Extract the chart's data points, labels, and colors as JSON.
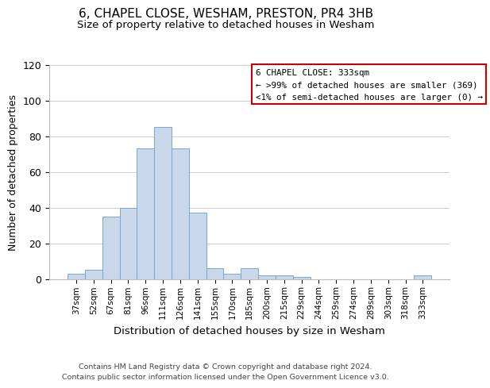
{
  "title": "6, CHAPEL CLOSE, WESHAM, PRESTON, PR4 3HB",
  "subtitle": "Size of property relative to detached houses in Wesham",
  "xlabel": "Distribution of detached houses by size in Wesham",
  "ylabel": "Number of detached properties",
  "bar_labels": [
    "37sqm",
    "52sqm",
    "67sqm",
    "81sqm",
    "96sqm",
    "111sqm",
    "126sqm",
    "141sqm",
    "155sqm",
    "170sqm",
    "185sqm",
    "200sqm",
    "215sqm",
    "229sqm",
    "244sqm",
    "259sqm",
    "274sqm",
    "289sqm",
    "303sqm",
    "318sqm",
    "333sqm"
  ],
  "bar_values": [
    3,
    5,
    35,
    40,
    73,
    85,
    73,
    37,
    6,
    3,
    6,
    2,
    2,
    1,
    0,
    0,
    0,
    0,
    0,
    0,
    2
  ],
  "bar_color": "#c8d8ea",
  "bar_edge_color": "#7aa8c8",
  "ylim": [
    0,
    120
  ],
  "yticks": [
    0,
    20,
    40,
    60,
    80,
    100,
    120
  ],
  "legend_title": "6 CHAPEL CLOSE: 333sqm",
  "legend_line1": "← >99% of detached houses are smaller (369)",
  "legend_line2": "<1% of semi-detached houses are larger (0) →",
  "legend_box_color": "#ffffff",
  "legend_box_edge": "#cc0000",
  "footer_line1": "Contains HM Land Registry data © Crown copyright and database right 2024.",
  "footer_line2": "Contains public sector information licensed under the Open Government Licence v3.0.",
  "background_color": "#ffffff",
  "grid_color": "#cccccc"
}
